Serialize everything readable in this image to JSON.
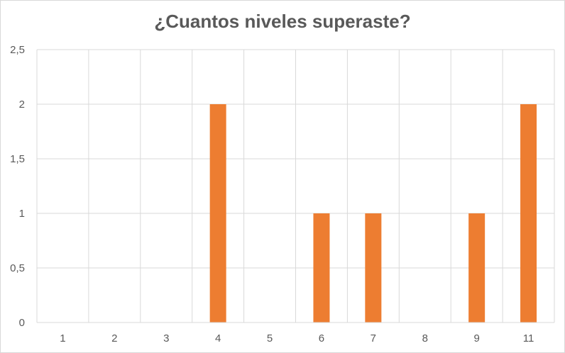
{
  "chart_data": {
    "type": "bar",
    "title": "¿Cuantos niveles superaste?",
    "categories": [
      "1",
      "2",
      "3",
      "4",
      "5",
      "6",
      "7",
      "8",
      "9",
      "11"
    ],
    "values": [
      0,
      0,
      0,
      2,
      0,
      1,
      1,
      0,
      1,
      2
    ],
    "ylim": [
      0,
      2.5
    ],
    "yticks": [
      "0",
      "0,5",
      "1",
      "1,5",
      "2",
      "2,5"
    ],
    "ytick_values": [
      0,
      0.5,
      1,
      1.5,
      2,
      2.5
    ],
    "bar_color": "#ED7D31",
    "grid": true
  }
}
